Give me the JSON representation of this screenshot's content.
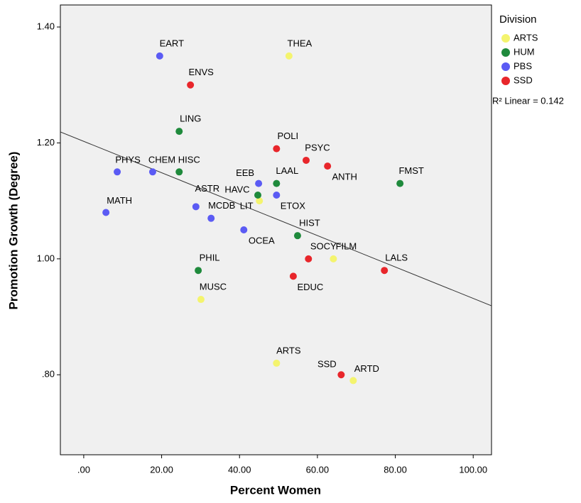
{
  "chart_data": {
    "type": "scatter",
    "x_label": "Percent Women",
    "y_label": "Promotion Growth (Degree)",
    "xlim": [
      -6,
      104.7
    ],
    "ylim": [
      0.662,
      1.438
    ],
    "xticks": [
      {
        "value": 0,
        "label": ".00"
      },
      {
        "value": 20,
        "label": "20.00"
      },
      {
        "value": 40,
        "label": "40.00"
      },
      {
        "value": 60,
        "label": "60.00"
      },
      {
        "value": 80,
        "label": "80.00"
      },
      {
        "value": 100,
        "label": "100.00"
      }
    ],
    "yticks": [
      {
        "value": 0.8,
        "label": ".80"
      },
      {
        "value": 1.0,
        "label": "1.00"
      },
      {
        "value": 1.2,
        "label": "1.20"
      },
      {
        "value": 1.4,
        "label": "1.40"
      }
    ],
    "legend_title": "Division",
    "legend_position": "right",
    "annotation": "R² Linear = 0.142",
    "fit_line": {
      "x": [
        -6,
        104.7
      ],
      "values": [
        1.219,
        0.919
      ]
    },
    "series": [
      {
        "name": "ARTS",
        "color": "#f4f46e",
        "labels": [
          "THEA",
          "LIT",
          "FILM",
          "MUSC",
          "ARTS",
          "ARTD"
        ],
        "x": [
          52.7,
          45.1,
          64.1,
          30.1,
          49.5,
          69.2
        ],
        "values": [
          1.35,
          1.1,
          1.0,
          0.93,
          0.82,
          0.79
        ]
      },
      {
        "name": "HUM",
        "color": "#1f8a3c",
        "labels": [
          "LING",
          "HISC",
          "FMST",
          "LAAL",
          "HAVC",
          "HIST",
          "PHIL"
        ],
        "x": [
          24.5,
          24.5,
          81.2,
          49.5,
          44.7,
          54.9,
          29.4
        ],
        "values": [
          1.22,
          1.15,
          1.13,
          1.13,
          1.11,
          1.04,
          0.98
        ]
      },
      {
        "name": "PBS",
        "color": "#5b5bf4",
        "labels": [
          "EART",
          "PHYS",
          "CHEM",
          "EEB",
          "ETOX",
          "ASTR",
          "MATH",
          "MCDB",
          "OCEA"
        ],
        "x": [
          19.5,
          8.6,
          17.7,
          44.9,
          49.5,
          28.8,
          5.7,
          32.7,
          41.1
        ],
        "values": [
          1.35,
          1.15,
          1.15,
          1.13,
          1.11,
          1.09,
          1.08,
          1.07,
          1.05
        ]
      },
      {
        "name": "SSD",
        "color": "#e8262b",
        "labels": [
          "ENVS",
          "POLI",
          "PSYC",
          "ANTH",
          "SOCY",
          "LALS",
          "EDUC",
          "SSD"
        ],
        "x": [
          27.4,
          49.5,
          57.1,
          62.6,
          57.7,
          77.2,
          53.8,
          66.1
        ],
        "values": [
          1.3,
          1.19,
          1.17,
          1.16,
          1.0,
          0.98,
          0.97,
          0.8
        ]
      }
    ]
  }
}
